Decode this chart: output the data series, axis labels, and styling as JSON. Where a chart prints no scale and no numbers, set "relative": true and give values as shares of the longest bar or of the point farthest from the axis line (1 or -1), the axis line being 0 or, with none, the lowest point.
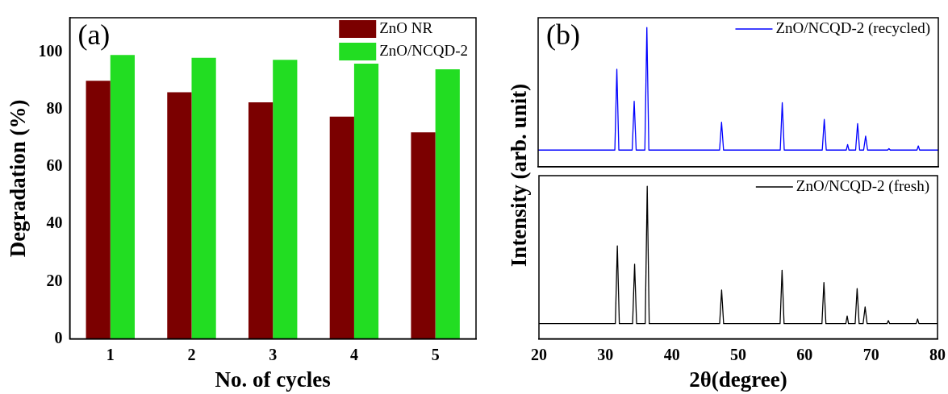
{
  "chart_data": [
    {
      "type": "bar",
      "categories": [
        "1",
        "2",
        "3",
        "4",
        "5"
      ],
      "xlabel": "No. of cycles",
      "ylabel": "Degradation (%)",
      "ylim": [
        0,
        112
      ],
      "yticks": [
        0,
        20,
        40,
        60,
        80,
        100
      ],
      "grid": false,
      "legend": "top right",
      "annotations": [
        "(a)"
      ],
      "series": [
        {
          "name": "ZnO NR",
          "color": "#7b0000",
          "values": [
            90,
            86,
            82.5,
            77.5,
            72
          ]
        },
        {
          "name": "ZnO/NCQD-2",
          "color": "#22dd22",
          "values": [
            99,
            98,
            97.3,
            96,
            94
          ]
        }
      ]
    },
    {
      "type": "line",
      "relative": true,
      "ylabel": "Intensity (arb. unit)",
      "xlim": [
        20,
        80
      ],
      "xticks": [
        20,
        30,
        40,
        50,
        60,
        70,
        80
      ],
      "tick_labels": false,
      "grid": false,
      "legend": "top right",
      "marker": "none",
      "annotations": [
        "(b)"
      ],
      "series": [
        {
          "name": "ZnO/NCQD-2 (recycled)",
          "color": "#0000ff",
          "x": [
            20,
            31.5,
            31.8,
            32.1,
            34.1,
            34.4,
            34.7,
            36.0,
            36.3,
            36.6,
            47.2,
            47.5,
            47.8,
            56.3,
            56.6,
            56.9,
            62.6,
            62.9,
            63.2,
            66.2,
            66.4,
            66.6,
            67.6,
            67.9,
            68.2,
            68.8,
            69.1,
            69.4,
            72.4,
            72.6,
            72.8,
            76.8,
            77.0,
            77.2,
            80
          ],
          "values": [
            0.12,
            0.12,
            0.7,
            0.12,
            0.12,
            0.47,
            0.12,
            0.12,
            1,
            0.12,
            0.12,
            0.32,
            0.12,
            0.12,
            0.46,
            0.12,
            0.12,
            0.34,
            0.12,
            0.12,
            0.16,
            0.12,
            0.12,
            0.31,
            0.12,
            0.12,
            0.22,
            0.12,
            0.12,
            0.13,
            0.12,
            0.12,
            0.15,
            0.12,
            0.12
          ]
        }
      ]
    },
    {
      "type": "line",
      "relative": true,
      "xlabel": "2θ(degree)",
      "xlim": [
        20,
        80
      ],
      "xticks": [
        20,
        30,
        40,
        50,
        60,
        70,
        80
      ],
      "tick_labels": "x",
      "grid": false,
      "legend": "top right",
      "marker": "none",
      "series": [
        {
          "name": "ZnO/NCQD-2 (fresh)",
          "color": "#000000",
          "x": [
            20,
            31.5,
            31.8,
            32.1,
            34.1,
            34.4,
            34.7,
            36.0,
            36.3,
            36.6,
            47.2,
            47.5,
            47.8,
            56.3,
            56.6,
            56.9,
            62.6,
            62.9,
            63.2,
            66.2,
            66.4,
            66.6,
            67.6,
            67.9,
            68.2,
            68.8,
            69.1,
            69.4,
            72.4,
            72.6,
            72.8,
            76.8,
            77.0,
            77.2,
            80
          ],
          "values": [
            0.1,
            0.1,
            0.61,
            0.1,
            0.1,
            0.49,
            0.1,
            0.1,
            1,
            0.1,
            0.1,
            0.32,
            0.1,
            0.1,
            0.45,
            0.1,
            0.1,
            0.37,
            0.1,
            0.1,
            0.15,
            0.1,
            0.1,
            0.33,
            0.1,
            0.1,
            0.21,
            0.1,
            0.1,
            0.12,
            0.1,
            0.1,
            0.13,
            0.1,
            0.1
          ]
        }
      ]
    }
  ]
}
